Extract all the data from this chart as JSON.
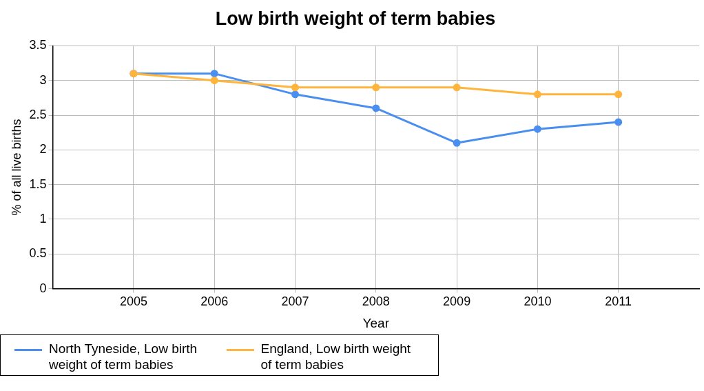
{
  "chart_data": {
    "type": "line",
    "title": "Low birth weight of term babies",
    "xlabel": "Year",
    "ylabel": "% of all live births",
    "x": [
      2005,
      2006,
      2007,
      2008,
      2009,
      2010,
      2011
    ],
    "series": [
      {
        "name": "North Tyneside, Low birth weight of term babies",
        "color": "#4a8ff0",
        "values": [
          3.1,
          3.1,
          2.8,
          2.6,
          2.1,
          2.3,
          2.4
        ]
      },
      {
        "name": "England, Low birth weight of term babies",
        "color": "#ffb43c",
        "values": [
          3.1,
          3.0,
          2.9,
          2.9,
          2.9,
          2.8,
          2.8
        ]
      }
    ],
    "xlim": [
      2004,
      2012
    ],
    "xticks": [
      2005,
      2006,
      2007,
      2008,
      2009,
      2010,
      2011
    ],
    "ylim": [
      0,
      3.5
    ],
    "yticks": [
      0,
      0.5,
      1,
      1.5,
      2,
      2.5,
      3,
      3.5
    ],
    "grid": true,
    "legend": "bottom left",
    "marker": "circle",
    "line_style": "solid"
  }
}
